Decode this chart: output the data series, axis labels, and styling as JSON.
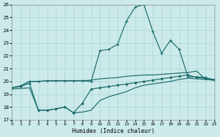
{
  "xlabel": "Humidex (Indice chaleur)",
  "xlim": [
    0,
    23
  ],
  "ylim": [
    17,
    26
  ],
  "yticks": [
    17,
    18,
    19,
    20,
    21,
    22,
    23,
    24,
    25,
    26
  ],
  "xticks": [
    0,
    1,
    2,
    3,
    4,
    5,
    6,
    7,
    8,
    9,
    10,
    11,
    12,
    13,
    14,
    15,
    16,
    17,
    18,
    19,
    20,
    21,
    22,
    23
  ],
  "bg_color": "#cceaea",
  "grid_color": "#aad4d4",
  "line_color": "#1a6b6b",
  "series": [
    {
      "name": "flat_upper",
      "x": [
        0,
        1,
        2,
        3,
        4,
        5,
        6,
        7,
        8,
        9,
        10,
        11,
        12,
        13,
        14,
        15,
        16,
        17,
        18,
        19,
        20,
        21,
        22,
        23
      ],
      "y": [
        19.5,
        19.65,
        20.0,
        20.0,
        20.05,
        20.05,
        20.05,
        20.05,
        20.05,
        20.1,
        20.2,
        20.25,
        20.3,
        20.4,
        20.45,
        20.5,
        20.5,
        20.55,
        20.6,
        20.65,
        20.7,
        20.8,
        20.15,
        20.1
      ],
      "marker": null,
      "lw": 0.9
    },
    {
      "name": "spike_plus",
      "x": [
        0,
        1,
        2,
        3,
        4,
        5,
        6,
        7,
        8,
        9,
        10,
        11,
        12,
        13,
        14,
        15,
        16,
        17,
        18,
        19,
        20,
        21,
        22,
        23
      ],
      "y": [
        19.5,
        19.65,
        20.0,
        20.0,
        20.05,
        20.05,
        20.05,
        20.05,
        20.05,
        20.0,
        22.4,
        22.5,
        22.9,
        24.7,
        25.8,
        26.0,
        23.9,
        22.2,
        23.2,
        22.5,
        20.35,
        20.35,
        20.3,
        20.1
      ],
      "marker": "+",
      "ms": 3,
      "lw": 0.9
    },
    {
      "name": "lower_diamond",
      "x": [
        0,
        1,
        2,
        3,
        4,
        5,
        6,
        7,
        8,
        9,
        10,
        11,
        12,
        13,
        14,
        15,
        16,
        17,
        18,
        19,
        20,
        21,
        22,
        23
      ],
      "y": [
        19.5,
        19.6,
        19.85,
        17.75,
        17.75,
        17.85,
        18.0,
        17.55,
        18.3,
        19.4,
        19.5,
        19.6,
        19.7,
        19.8,
        19.9,
        20.0,
        20.1,
        20.2,
        20.3,
        20.4,
        20.5,
        20.3,
        20.25,
        20.15
      ],
      "marker": "D",
      "ms": 2,
      "lw": 0.9
    },
    {
      "name": "rising_bottom",
      "x": [
        0,
        1,
        2,
        3,
        4,
        5,
        6,
        7,
        8,
        9,
        10,
        11,
        12,
        13,
        14,
        15,
        16,
        17,
        18,
        19,
        20,
        21,
        22,
        23
      ],
      "y": [
        19.4,
        19.45,
        19.5,
        17.75,
        17.75,
        17.85,
        18.0,
        17.55,
        17.6,
        17.75,
        18.5,
        18.8,
        19.0,
        19.2,
        19.5,
        19.7,
        19.8,
        19.9,
        20.0,
        20.15,
        20.25,
        20.2,
        20.15,
        20.1
      ],
      "marker": null,
      "lw": 0.9
    }
  ]
}
